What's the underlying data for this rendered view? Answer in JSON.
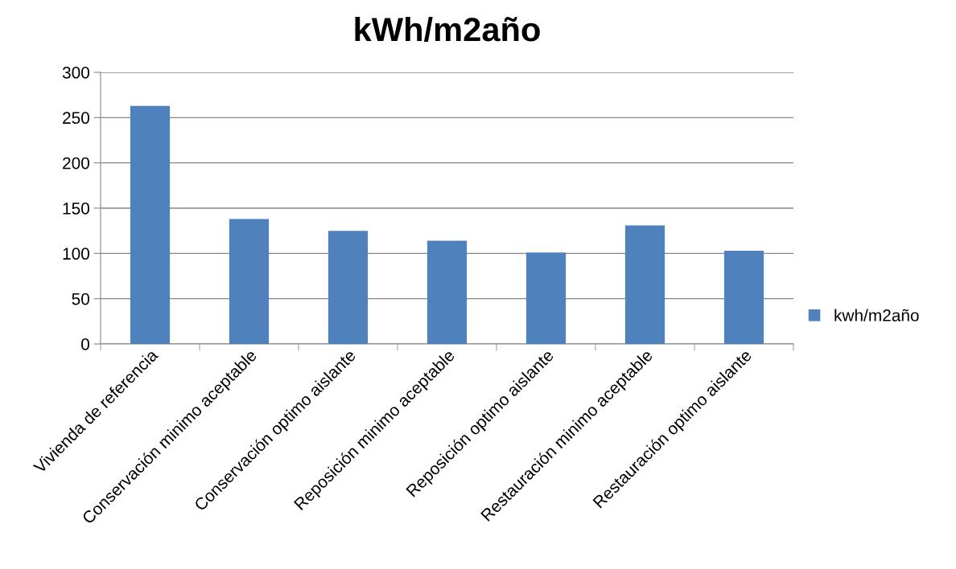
{
  "chart_data": {
    "type": "bar",
    "title": "kWh/m2año",
    "categories": [
      "Vivienda de referencia",
      "Conservación minimo aceptable",
      "Conservación optimo aislante",
      "Reposición minimo aceptable",
      "Reposición optimo aislante",
      "Restauración minimo aceptable",
      "Restauración optimo aislante"
    ],
    "series": [
      {
        "name": "kwh/m2año",
        "color": "#4f81bd",
        "values": [
          263,
          138,
          125,
          114,
          101,
          131,
          103
        ]
      }
    ],
    "ylim": [
      0,
      300
    ],
    "yticks": [
      0,
      50,
      100,
      150,
      200,
      250,
      300
    ],
    "grid": "y",
    "legend": "right"
  }
}
